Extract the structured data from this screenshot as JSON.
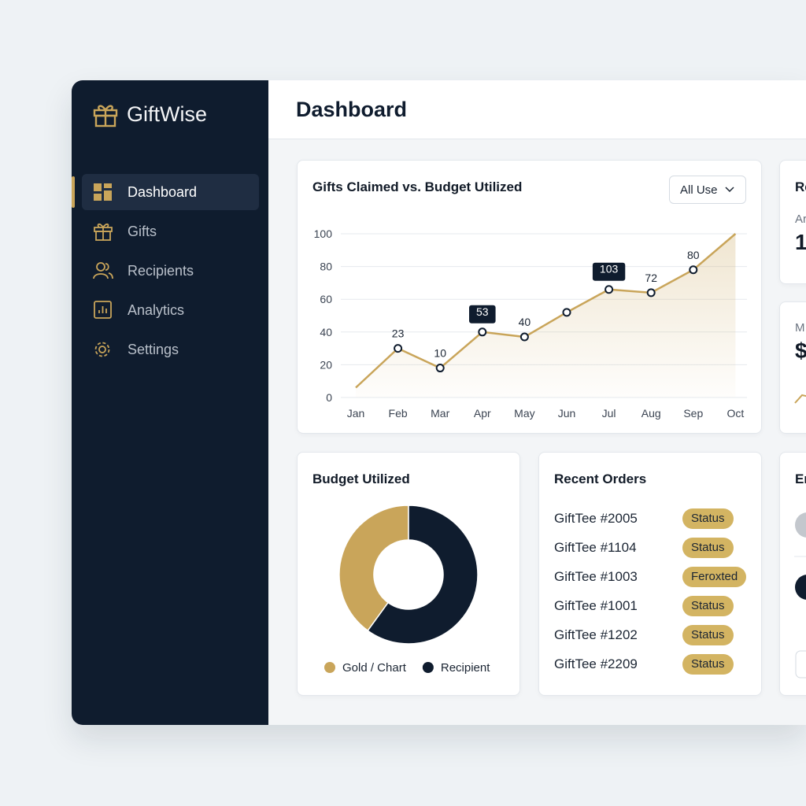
{
  "app": {
    "brand": "GiftWise",
    "nav": [
      {
        "label": "Dashboard",
        "active": true
      },
      {
        "label": "Gifts",
        "active": false
      },
      {
        "label": "Recipients",
        "active": false
      },
      {
        "label": "Analytics",
        "active": false
      },
      {
        "label": "Settings",
        "active": false
      }
    ],
    "page_title": "Dashboard"
  },
  "chart_data": [
    {
      "type": "line",
      "title": "Gifts Claimed vs. Budget Utilized",
      "filter": "All Use",
      "categories": [
        "Jan",
        "Feb",
        "Mar",
        "Apr",
        "May",
        "Jun",
        "Jul",
        "Aug",
        "Sep",
        "Oct"
      ],
      "values": [
        6,
        30,
        18,
        40,
        37,
        52,
        66,
        64,
        78,
        100
      ],
      "color": "#c9a55a",
      "area": true,
      "ylim": [
        0,
        100
      ],
      "yticks": [
        0,
        20,
        40,
        60,
        80,
        100
      ],
      "grid": true,
      "annotations": [
        {
          "category": "Feb",
          "text": "23",
          "highlight": false
        },
        {
          "category": "Mar",
          "text": "10",
          "highlight": false
        },
        {
          "category": "Apr",
          "text": "53",
          "highlight": true
        },
        {
          "category": "May",
          "text": "40",
          "highlight": false
        },
        {
          "category": "Jul",
          "text": "103",
          "highlight": true
        },
        {
          "category": "Aug",
          "text": "72",
          "highlight": false
        },
        {
          "category": "Sep",
          "text": "80",
          "highlight": false
        }
      ]
    },
    {
      "type": "pie",
      "title": "Budget Utilized",
      "donut": true,
      "categories": [
        "Gold / Chart",
        "Recipient"
      ],
      "values": [
        40,
        60
      ],
      "colors": [
        "#c9a55a",
        "#0f1c2e"
      ],
      "legend": "bottom"
    }
  ],
  "recent_orders": {
    "title": "Recent Orders",
    "rows": [
      {
        "order": "GiftTee #2005",
        "status": "Status"
      },
      {
        "order": "GiftTee #1104",
        "status": "Status"
      },
      {
        "order": "GiftTee #1003",
        "status": "Feroxted"
      },
      {
        "order": "GiftTee #1001",
        "status": "Status"
      },
      {
        "order": "GiftTee #1202",
        "status": "Status"
      },
      {
        "order": "GiftTee #2209",
        "status": "Status"
      }
    ]
  },
  "side_cards": [
    {
      "title": "Re",
      "label": "Ar",
      "value": "1"
    },
    {
      "label": "M",
      "value": "$"
    },
    {
      "title": "Er"
    }
  ]
}
